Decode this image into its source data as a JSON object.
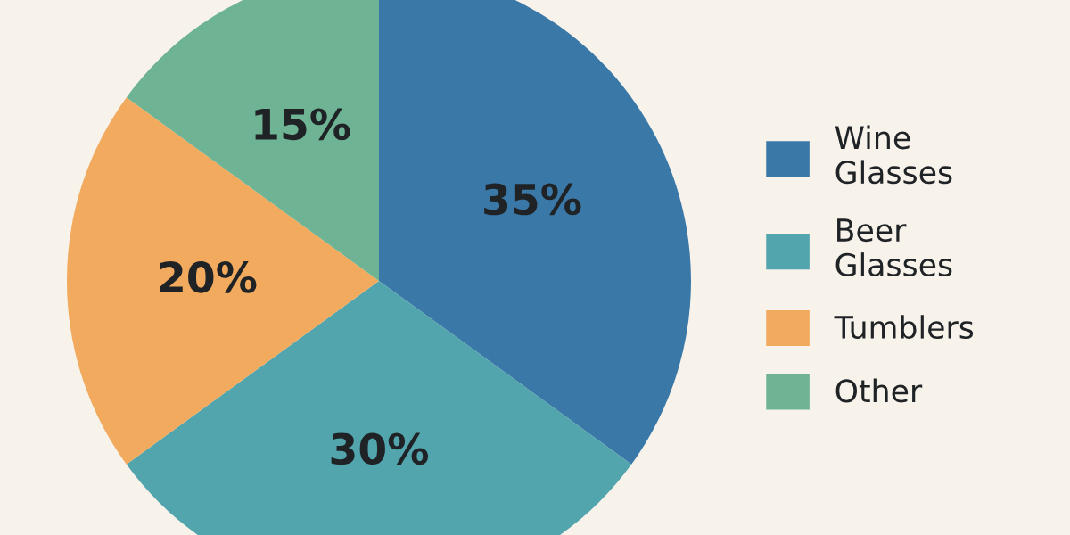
{
  "chart_data": {
    "type": "pie",
    "categories": [
      "Wine\nGlasses",
      "Beer\nGlasses",
      "Tumblers",
      "Other"
    ],
    "values": [
      35,
      30,
      20,
      15
    ],
    "value_labels": [
      "35%",
      "30%",
      "20%",
      "15%"
    ],
    "colors": [
      "#3a78a8",
      "#52a5ad",
      "#f2aa5e",
      "#6db394"
    ],
    "legend": "right"
  }
}
